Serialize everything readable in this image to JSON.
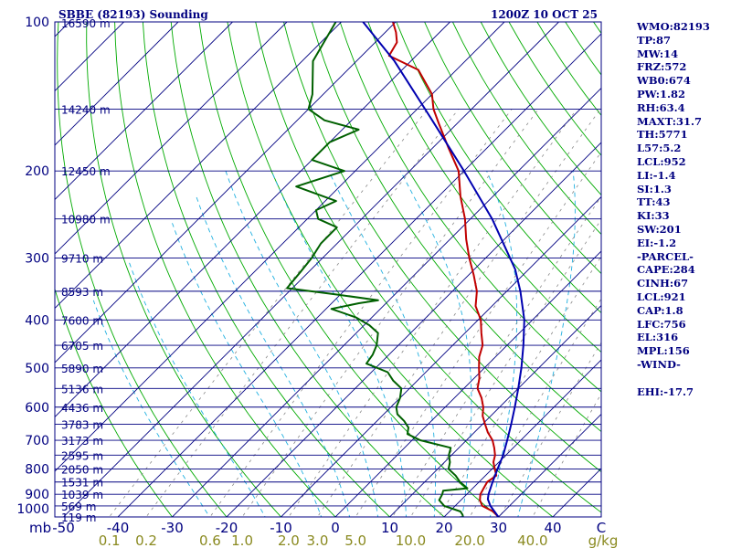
{
  "header": {
    "station": "SBBE (82193) Sounding",
    "time": "1200Z 10 OCT 25"
  },
  "stats": [
    "WMO:82193",
    "TP:87",
    "MW:14",
    "FRZ:572",
    "WB0:674",
    "PW:1.82",
    "RH:63.4",
    "MAXT:31.7",
    "TH:5771",
    "L57:5.2",
    "LCL:952",
    "LI:-1.4",
    "SI:1.3",
    "TT:43",
    "KI:33",
    "SW:201",
    "EI:-1.2",
    "-PARCEL-",
    "CAPE:284",
    "CINH:67",
    "LCL:921",
    "CAP:1.8",
    "LFC:756",
    "EL:316",
    "MPL:156",
    "-WIND-",
    "",
    "EHI:-17.7"
  ],
  "colors": {
    "isobar": "#000080",
    "isotherm": "#000080",
    "dry_adiabat": "#00aa00",
    "moist_adiabat": "#20b0e0",
    "mixing_ratio": "#888888",
    "temperature": "#c00000",
    "dewpoint": "#006000",
    "parcel": "#0000b0"
  },
  "chart_data": {
    "type": "line",
    "skew_t": true,
    "y_scale": "log",
    "ylim": [
      1000,
      100
    ],
    "xlim": [
      -50,
      50
    ],
    "xlabel": "C",
    "y_unit": "mb",
    "pressure_ticks": [
      100,
      200,
      300,
      400,
      500,
      600,
      700,
      800,
      900,
      1000
    ],
    "temperature_ticks": [
      "-50",
      "-40",
      "-30",
      "-20",
      "-10",
      "0",
      "10",
      "20",
      "30",
      "40"
    ],
    "mixing_ratio_ticks": [
      "0.1",
      "0.2",
      "0.6",
      "1.0",
      "2.0",
      "3.0",
      "5.0",
      "10.0",
      "20.0",
      "40.0"
    ],
    "mixing_ratio_unit": "g/kg",
    "height_labels": [
      {
        "p": 100,
        "h": "16590 m"
      },
      {
        "p": 150,
        "h": "14240 m"
      },
      {
        "p": 200,
        "h": "12450 m"
      },
      {
        "p": 250,
        "h": "10980 m"
      },
      {
        "p": 300,
        "h": "9710 m"
      },
      {
        "p": 350,
        "h": "8593 m"
      },
      {
        "p": 400,
        "h": "7600 m"
      },
      {
        "p": 450,
        "h": "6705 m"
      },
      {
        "p": 500,
        "h": "5890 m"
      },
      {
        "p": 550,
        "h": "5136 m"
      },
      {
        "p": 600,
        "h": "4436 m"
      },
      {
        "p": 650,
        "h": "3783 m"
      },
      {
        "p": 700,
        "h": "3173 m"
      },
      {
        "p": 750,
        "h": "2595 m"
      },
      {
        "p": 800,
        "h": "2050 m"
      },
      {
        "p": 850,
        "h": "1531 m"
      },
      {
        "p": 900,
        "h": "1039 m"
      },
      {
        "p": 950,
        "h": "569 m"
      },
      {
        "p": 1000,
        "h": "119 m"
      }
    ],
    "series": [
      {
        "key": "temperature",
        "values": [
          [
            1005,
            30.5
          ],
          [
            1000,
            30
          ],
          [
            975,
            28
          ],
          [
            950,
            25
          ],
          [
            925,
            23.5
          ],
          [
            900,
            22.5
          ],
          [
            875,
            22
          ],
          [
            850,
            21.5
          ],
          [
            825,
            22
          ],
          [
            800,
            20.5
          ],
          [
            775,
            19
          ],
          [
            750,
            18
          ],
          [
            725,
            16.5
          ],
          [
            700,
            14.8
          ],
          [
            675,
            12.5
          ],
          [
            650,
            10.5
          ],
          [
            625,
            8.5
          ],
          [
            600,
            7
          ],
          [
            575,
            5
          ],
          [
            550,
            2.5
          ],
          [
            525,
            1
          ],
          [
            500,
            -1
          ],
          [
            475,
            -3
          ],
          [
            450,
            -4.5
          ],
          [
            425,
            -7
          ],
          [
            400,
            -9.5
          ],
          [
            375,
            -13
          ],
          [
            350,
            -15.5
          ],
          [
            325,
            -19
          ],
          [
            300,
            -23
          ],
          [
            275,
            -27
          ],
          [
            250,
            -31
          ],
          [
            225,
            -36
          ],
          [
            200,
            -41
          ],
          [
            180,
            -47
          ],
          [
            160,
            -53.5
          ],
          [
            150,
            -57
          ],
          [
            140,
            -60
          ],
          [
            125,
            -67
          ],
          [
            117,
            -75
          ],
          [
            110,
            -76
          ],
          [
            105,
            -78
          ],
          [
            100,
            -80.5
          ]
        ]
      },
      {
        "key": "dewpoint",
        "values": [
          [
            1005,
            22
          ],
          [
            1000,
            23.5
          ],
          [
            990,
            23
          ],
          [
            975,
            22
          ],
          [
            950,
            18
          ],
          [
            925,
            16
          ],
          [
            900,
            15.5
          ],
          [
            885,
            15
          ],
          [
            875,
            19
          ],
          [
            850,
            16.5
          ],
          [
            825,
            14.5
          ],
          [
            800,
            12
          ],
          [
            775,
            11
          ],
          [
            750,
            9.5
          ],
          [
            725,
            8.5
          ],
          [
            700,
            1.5
          ],
          [
            680,
            -2
          ],
          [
            660,
            -3
          ],
          [
            640,
            -5
          ],
          [
            620,
            -7.5
          ],
          [
            600,
            -9
          ],
          [
            575,
            -10
          ],
          [
            550,
            -11.5
          ],
          [
            530,
            -14.5
          ],
          [
            510,
            -17
          ],
          [
            490,
            -22.5
          ],
          [
            470,
            -23
          ],
          [
            450,
            -24
          ],
          [
            425,
            -26
          ],
          [
            410,
            -29
          ],
          [
            395,
            -33
          ],
          [
            380,
            -39
          ],
          [
            370,
            -35
          ],
          [
            365,
            -32
          ],
          [
            355,
            -41
          ],
          [
            345,
            -51
          ],
          [
            320,
            -51.5
          ],
          [
            300,
            -52
          ],
          [
            280,
            -53
          ],
          [
            260,
            -53
          ],
          [
            250,
            -58
          ],
          [
            240,
            -60
          ],
          [
            230,
            -58
          ],
          [
            215,
            -68
          ],
          [
            200,
            -62
          ],
          [
            190,
            -70
          ],
          [
            175,
            -70
          ],
          [
            165,
            -67
          ],
          [
            158,
            -75
          ],
          [
            150,
            -80
          ],
          [
            140,
            -82
          ],
          [
            120,
            -88
          ],
          [
            100,
            -91
          ]
        ]
      },
      {
        "key": "parcel",
        "values": [
          [
            1000,
            30
          ],
          [
            950,
            26.5
          ],
          [
            921,
            24.8
          ],
          [
            900,
            24
          ],
          [
            850,
            22.5
          ],
          [
            800,
            21
          ],
          [
            750,
            19.5
          ],
          [
            700,
            17.5
          ],
          [
            650,
            15.3
          ],
          [
            600,
            12.8
          ],
          [
            550,
            10
          ],
          [
            500,
            6.8
          ],
          [
            450,
            3
          ],
          [
            400,
            -1.5
          ],
          [
            350,
            -7.5
          ],
          [
            316,
            -12.5
          ],
          [
            300,
            -15.5
          ],
          [
            250,
            -26
          ],
          [
            200,
            -40
          ],
          [
            156,
            -56
          ],
          [
            120,
            -73
          ],
          [
            100,
            -86
          ]
        ]
      }
    ]
  }
}
